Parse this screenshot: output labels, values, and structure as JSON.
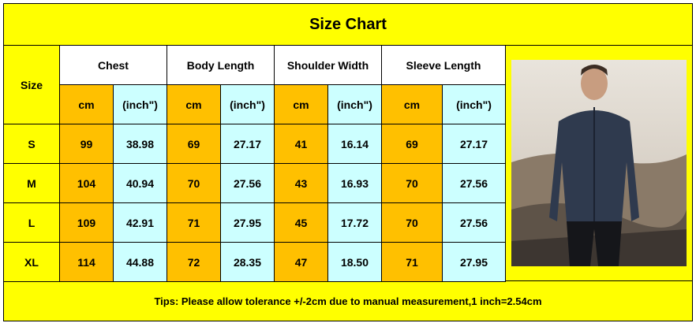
{
  "title": "Size Chart",
  "header": {
    "size": "Size",
    "groups": [
      "Chest",
      "Body Length",
      "Shoulder Width",
      "Sleeve Length"
    ],
    "units": [
      "cm",
      "(inch\")"
    ]
  },
  "rows": [
    [
      "S",
      "99",
      "38.98",
      "69",
      "27.17",
      "41",
      "16.14",
      "69",
      "27.17"
    ],
    [
      "M",
      "104",
      "40.94",
      "70",
      "27.56",
      "43",
      "16.93",
      "70",
      "27.56"
    ],
    [
      "L",
      "109",
      "42.91",
      "71",
      "27.95",
      "45",
      "17.72",
      "70",
      "27.56"
    ],
    [
      "XL",
      "114",
      "44.88",
      "72",
      "28.35",
      "47",
      "18.50",
      "71",
      "27.95"
    ]
  ],
  "tips": "Tips: Please allow tolerance +/-2cm due to manual measurement,1 inch=2.54cm"
}
